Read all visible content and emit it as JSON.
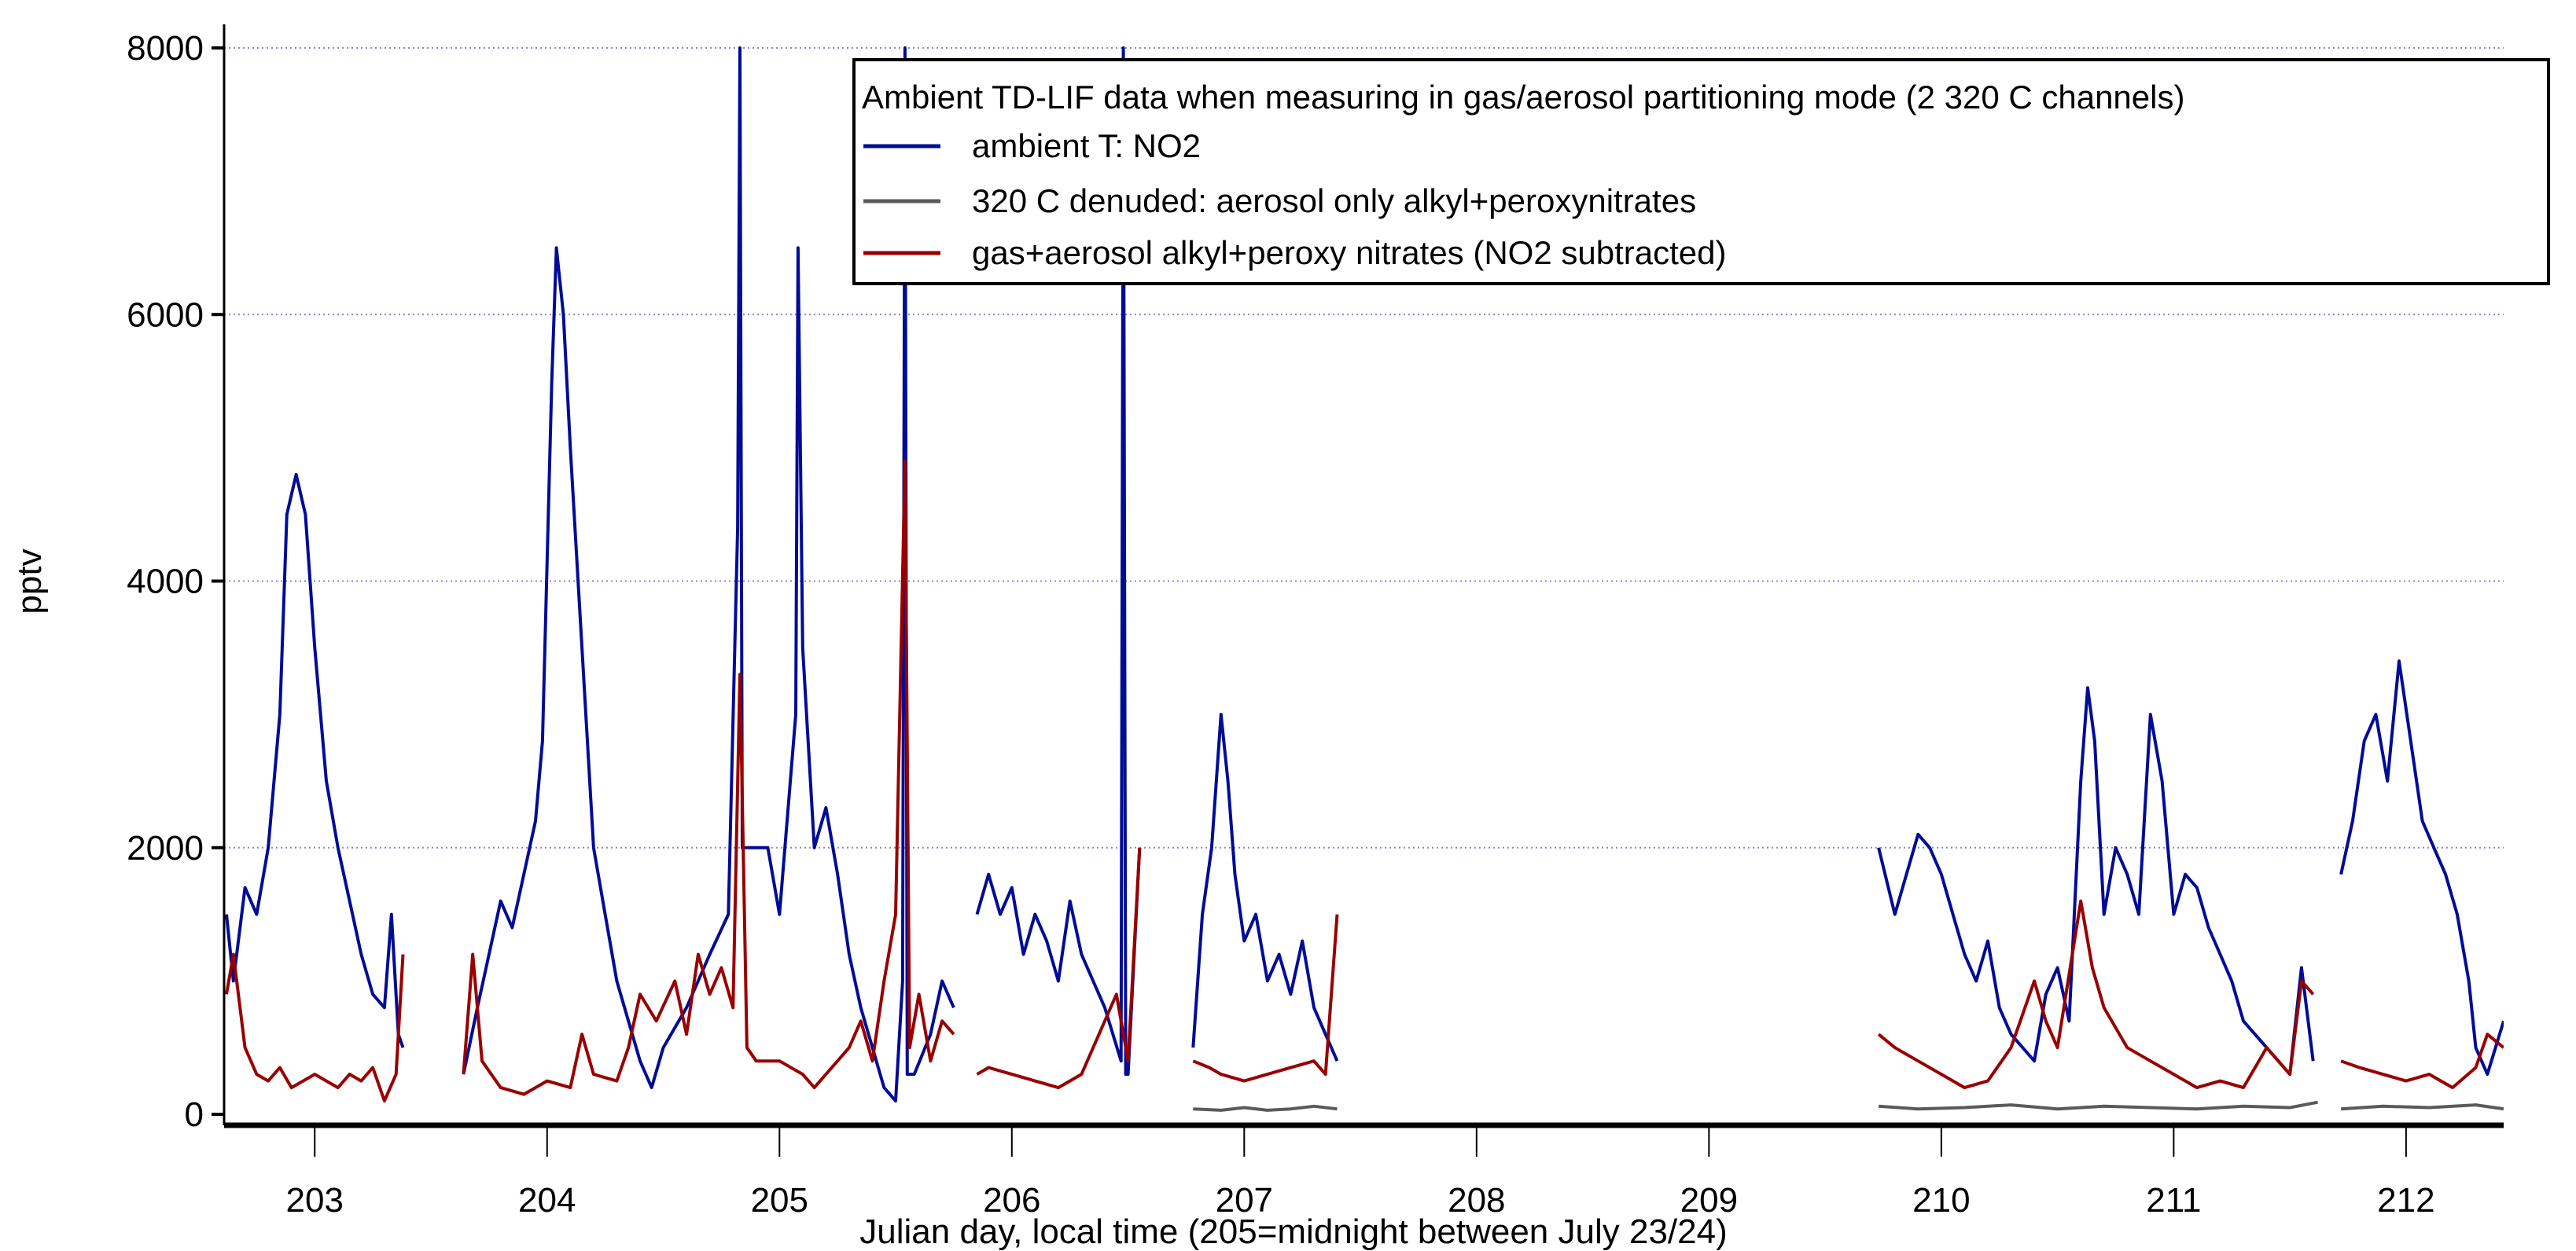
{
  "chart_data": {
    "type": "line",
    "title": "",
    "xlabel": "Julian day, local time (205=midnight between July 23/24)",
    "ylabel": "pptv",
    "xlim": [
      202.61,
      212.42
    ],
    "ylim": [
      0,
      8000
    ],
    "x_ticks": [
      203,
      204,
      205,
      206,
      207,
      208,
      209,
      210,
      211,
      212
    ],
    "x_tick_labels": [
      "203",
      "204",
      "205",
      "206",
      "207",
      "208",
      "209",
      "210",
      "211",
      "212"
    ],
    "y_ticks": [
      0,
      2000,
      4000,
      6000,
      8000
    ],
    "y_tick_labels": [
      "0",
      "2000",
      "4000",
      "6000",
      "8000"
    ],
    "grid": "horizontal dotted",
    "legend": {
      "placement": "top-right",
      "title": "Ambient TD-LIF data when measuring in gas/aerosol partitioning mode (2 320 C channels)"
    },
    "series": [
      {
        "name": "ambient T: NO2",
        "color": "#000c96",
        "segments": [
          {
            "x": [
              202.62,
              202.65,
              202.7,
              202.75,
              202.8,
              202.85,
              202.88,
              202.92,
              202.96,
              203.0,
              203.05,
              203.1,
              203.15,
              203.2,
              203.25,
              203.3,
              203.33,
              203.36,
              203.38
            ],
            "y": [
              1500,
              1000,
              1700,
              1500,
              2000,
              3000,
              4500,
              4800,
              4500,
              3500,
              2500,
              2000,
              1600,
              1200,
              900,
              800,
              1500,
              600,
              500
            ]
          },
          {
            "x": [
              203.64,
              203.7,
              203.75,
              203.8,
              203.85,
              203.9,
              203.95,
              203.98,
              204.02,
              204.04,
              204.07,
              204.1,
              204.15,
              204.2,
              204.25,
              204.3,
              204.35,
              204.4,
              204.45,
              204.5,
              204.6,
              204.7,
              204.78,
              204.82,
              204.83,
              204.84,
              204.86,
              204.95,
              205.0,
              205.07,
              205.08,
              205.1,
              205.15,
              205.2,
              205.25,
              205.3,
              205.35,
              205.4,
              205.45,
              205.5,
              205.53,
              205.54,
              205.55,
              205.58,
              205.65,
              205.7,
              205.75
            ],
            "y": [
              300,
              800,
              1200,
              1600,
              1400,
              1800,
              2200,
              2800,
              5500,
              6500,
              6000,
              5000,
              3500,
              2000,
              1500,
              1000,
              700,
              400,
              200,
              500,
              800,
              1200,
              1500,
              4400,
              8000,
              2000,
              2000,
              2000,
              1500,
              3000,
              6500,
              3500,
              2000,
              2300,
              1800,
              1200,
              800,
              500,
              200,
              100,
              1000,
              8000,
              300,
              300,
              600,
              1000,
              800
            ]
          },
          {
            "x": [
              205.85,
              205.9,
              205.95,
              206.0,
              206.05,
              206.1,
              206.15,
              206.2,
              206.25,
              206.3,
              206.35,
              206.4,
              206.47,
              206.48,
              206.49,
              206.5,
              206.55
            ],
            "y": [
              1500,
              1800,
              1500,
              1700,
              1200,
              1500,
              1300,
              1000,
              1600,
              1200,
              1000,
              800,
              400,
              8000,
              300,
              300,
              2000
            ]
          },
          {
            "x": [
              206.78,
              206.82,
              206.86,
              206.9,
              206.93,
              206.96,
              207.0,
              207.05,
              207.1,
              207.15,
              207.2,
              207.25,
              207.3,
              207.35,
              207.4
            ],
            "y": [
              500,
              1500,
              2000,
              3000,
              2500,
              1800,
              1300,
              1500,
              1000,
              1200,
              900,
              1300,
              800,
              600,
              400
            ]
          },
          {
            "x": [
              209.73,
              209.8,
              209.85,
              209.9,
              209.95,
              210.0,
              210.05,
              210.1,
              210.15,
              210.2,
              210.25,
              210.3,
              210.35,
              210.4,
              210.45,
              210.5,
              210.55,
              210.6,
              210.63,
              210.66,
              210.7,
              210.75,
              210.8,
              210.85,
              210.9,
              210.95,
              211.0,
              211.05,
              211.1,
              211.15,
              211.2,
              211.25,
              211.3,
              211.4,
              211.5,
              211.55,
              211.6
            ],
            "y": [
              2000,
              1500,
              1800,
              2100,
              2000,
              1800,
              1500,
              1200,
              1000,
              1300,
              800,
              600,
              500,
              400,
              900,
              1100,
              700,
              2500,
              3200,
              2800,
              1500,
              2000,
              1800,
              1500,
              3000,
              2500,
              1500,
              1800,
              1700,
              1400,
              1200,
              1000,
              700,
              500,
              300,
              1100,
              400
            ]
          },
          {
            "x": [
              211.72,
              211.77,
              211.82,
              211.87,
              211.92,
              211.97,
              212.02,
              212.07,
              212.12,
              212.17,
              212.22,
              212.27,
              212.3,
              212.35,
              212.42
            ],
            "y": [
              1800,
              2200,
              2800,
              3000,
              2500,
              3400,
              2800,
              2200,
              2000,
              1800,
              1500,
              1000,
              500,
              300,
              700
            ]
          }
        ]
      },
      {
        "name": "320 C denuded: aerosol only alkyl+peroxynitrates",
        "color": "#5a5a5a",
        "segments": [
          {
            "x": [
              206.78,
              206.9,
              207.0,
              207.1,
              207.2,
              207.3,
              207.4
            ],
            "y": [
              40,
              30,
              50,
              30,
              40,
              60,
              40
            ]
          },
          {
            "x": [
              209.73,
              209.9,
              210.1,
              210.3,
              210.5,
              210.7,
              210.9,
              211.1,
              211.3,
              211.5,
              211.62
            ],
            "y": [
              60,
              40,
              50,
              70,
              40,
              60,
              50,
              40,
              60,
              50,
              90
            ]
          },
          {
            "x": [
              211.72,
              211.9,
              212.1,
              212.3,
              212.42
            ],
            "y": [
              40,
              60,
              50,
              70,
              40
            ]
          }
        ]
      },
      {
        "name": "gas+aerosol alkyl+peroxy nitrates (NO2 subtracted)",
        "color": "#990000",
        "segments": [
          {
            "x": [
              202.62,
              202.65,
              202.7,
              202.75,
              202.8,
              202.85,
              202.9,
              202.95,
              203.0,
              203.05,
              203.1,
              203.15,
              203.2,
              203.25,
              203.3,
              203.35,
              203.38
            ],
            "y": [
              900,
              1200,
              500,
              300,
              250,
              350,
              200,
              250,
              300,
              250,
              200,
              300,
              250,
              350,
              100,
              300,
              1200
            ]
          },
          {
            "x": [
              203.64,
              203.68,
              203.72,
              203.8,
              203.9,
              204.0,
              204.1,
              204.15,
              204.2,
              204.3,
              204.35,
              204.4,
              204.47,
              204.55,
              204.6,
              204.65,
              204.7,
              204.75,
              204.8,
              204.83,
              204.86,
              204.9,
              205.0,
              205.1,
              205.15,
              205.2,
              205.3,
              205.35,
              205.4,
              205.45,
              205.5,
              205.54,
              205.56,
              205.6,
              205.65,
              205.7,
              205.75
            ],
            "y": [
              300,
              1200,
              400,
              200,
              150,
              250,
              200,
              600,
              300,
              250,
              500,
              900,
              700,
              1000,
              600,
              1200,
              900,
              1100,
              800,
              3300,
              500,
              400,
              400,
              300,
              200,
              300,
              500,
              700,
              400,
              1000,
              1500,
              4900,
              500,
              900,
              400,
              700,
              600
            ]
          },
          {
            "x": [
              205.85,
              205.9,
              206.0,
              206.1,
              206.2,
              206.3,
              206.4,
              206.45,
              206.5,
              206.55
            ],
            "y": [
              300,
              350,
              300,
              250,
              200,
              300,
              700,
              900,
              400,
              2000
            ]
          },
          {
            "x": [
              206.78,
              206.85,
              206.9,
              207.0,
              207.1,
              207.2,
              207.3,
              207.35,
              207.4
            ],
            "y": [
              400,
              350,
              300,
              250,
              300,
              350,
              400,
              300,
              1500
            ]
          },
          {
            "x": [
              209.73,
              209.8,
              209.9,
              210.0,
              210.1,
              210.2,
              210.3,
              210.4,
              210.45,
              210.5,
              210.6,
              210.65,
              210.7,
              210.8,
              210.9,
              211.0,
              211.1,
              211.2,
              211.3,
              211.4,
              211.5,
              211.55,
              211.6
            ],
            "y": [
              600,
              500,
              400,
              300,
              200,
              250,
              500,
              1000,
              700,
              500,
              1600,
              1100,
              800,
              500,
              400,
              300,
              200,
              250,
              200,
              500,
              300,
              1000,
              900
            ]
          },
          {
            "x": [
              211.72,
              211.8,
              211.9,
              212.0,
              212.1,
              212.2,
              212.3,
              212.35,
              212.42
            ],
            "y": [
              400,
              350,
              300,
              250,
              300,
              200,
              350,
              600,
              500
            ]
          }
        ]
      }
    ]
  }
}
